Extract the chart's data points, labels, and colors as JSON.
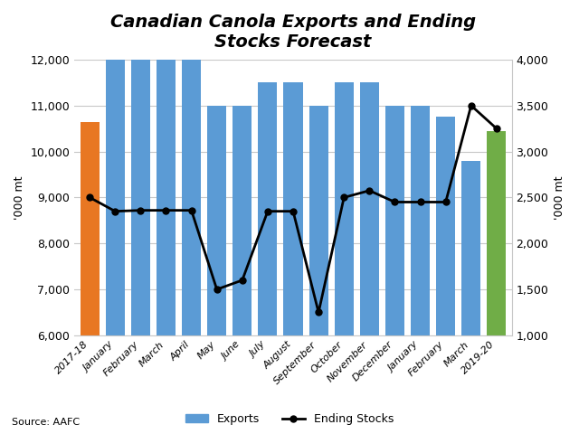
{
  "title": "Canadian Canola Exports and Ending\nStocks Forecast",
  "categories": [
    "2017-18",
    "January",
    "February",
    "March",
    "April",
    "May",
    "June",
    "July",
    "August",
    "September",
    "October",
    "November",
    "December",
    "January",
    "February",
    "March",
    "2019-20"
  ],
  "exports": [
    10650,
    12000,
    12000,
    12000,
    12000,
    11000,
    11000,
    11500,
    11500,
    11000,
    11500,
    11500,
    11000,
    11000,
    10750,
    9800,
    10450
  ],
  "ending_stocks": [
    2500,
    2350,
    2360,
    2360,
    2360,
    1500,
    1600,
    2350,
    2350,
    1250,
    2500,
    2575,
    2450,
    2450,
    2450,
    3500,
    3250
  ],
  "bar_colors": [
    "#E87722",
    "#5B9BD5",
    "#5B9BD5",
    "#5B9BD5",
    "#5B9BD5",
    "#5B9BD5",
    "#5B9BD5",
    "#5B9BD5",
    "#5B9BD5",
    "#5B9BD5",
    "#5B9BD5",
    "#5B9BD5",
    "#5B9BD5",
    "#5B9BD5",
    "#5B9BD5",
    "#5B9BD5",
    "#70AD47"
  ],
  "left_ylim": [
    6000,
    12000
  ],
  "right_ylim": [
    1000,
    4000
  ],
  "left_ylabel": "'000 mt",
  "right_ylabel": "'000 mt",
  "left_yticks": [
    6000,
    7000,
    8000,
    9000,
    10000,
    11000,
    12000
  ],
  "right_yticks": [
    1000,
    1500,
    2000,
    2500,
    3000,
    3500,
    4000
  ],
  "source_text": "Source: AAFC",
  "line_color": "#000000",
  "background_color": "#FFFFFF",
  "grid_color": "#C8C8C8"
}
